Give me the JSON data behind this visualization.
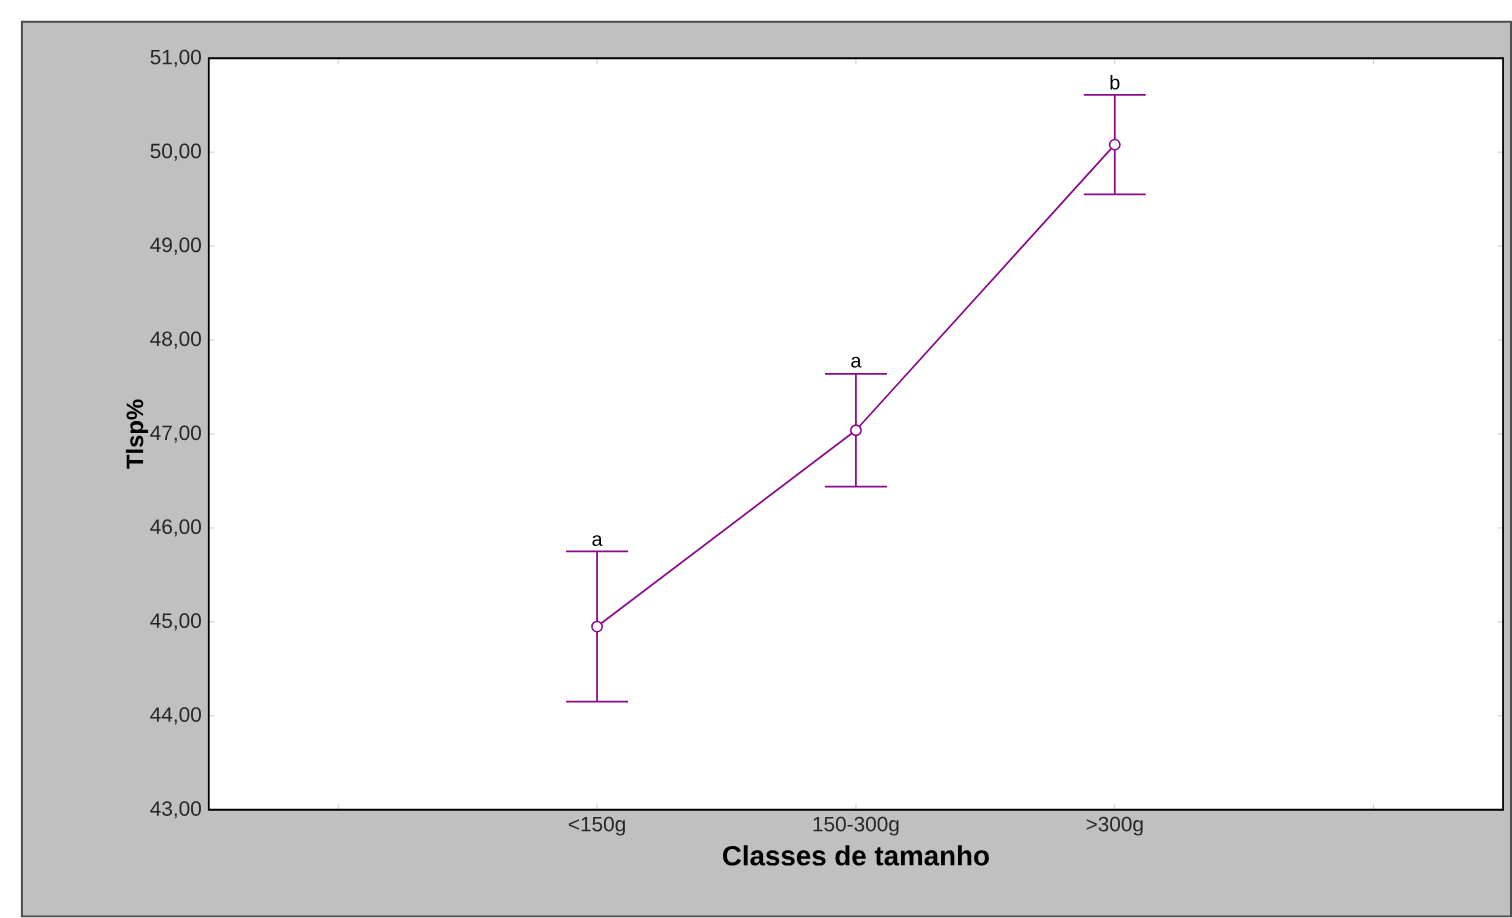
{
  "chart_data": {
    "type": "line",
    "xlabel": "Classes de tamanho",
    "ylabel": "Tlsp%",
    "categories": [
      null,
      "<150g",
      "150-300g",
      ">300g",
      null
    ],
    "values": [
      null,
      44.95,
      47.04,
      50.08,
      null
    ],
    "errors": [
      null,
      0.8,
      0.6,
      0.53,
      null
    ],
    "color": "#8b0a8b",
    "marker": "circle",
    "ylim": [
      43,
      51
    ],
    "yticks": [
      {
        "value": 43,
        "label": "43,00"
      },
      {
        "value": 44,
        "label": "44,00"
      },
      {
        "value": 45,
        "label": "45,00"
      },
      {
        "value": 46,
        "label": "46,00"
      },
      {
        "value": 47,
        "label": "47,00"
      },
      {
        "value": 48,
        "label": "48,00"
      },
      {
        "value": 49,
        "label": "49,00"
      },
      {
        "value": 50,
        "label": "50,00"
      },
      {
        "value": 51,
        "label": "51,00"
      }
    ],
    "annotations": [
      {
        "text": "a",
        "x": "<150g",
        "y": 45.76
      },
      {
        "text": "a",
        "x": "150-300g",
        "y": 47.66
      },
      {
        "text": "b",
        "x": ">300g",
        "y": 50.62
      }
    ]
  }
}
